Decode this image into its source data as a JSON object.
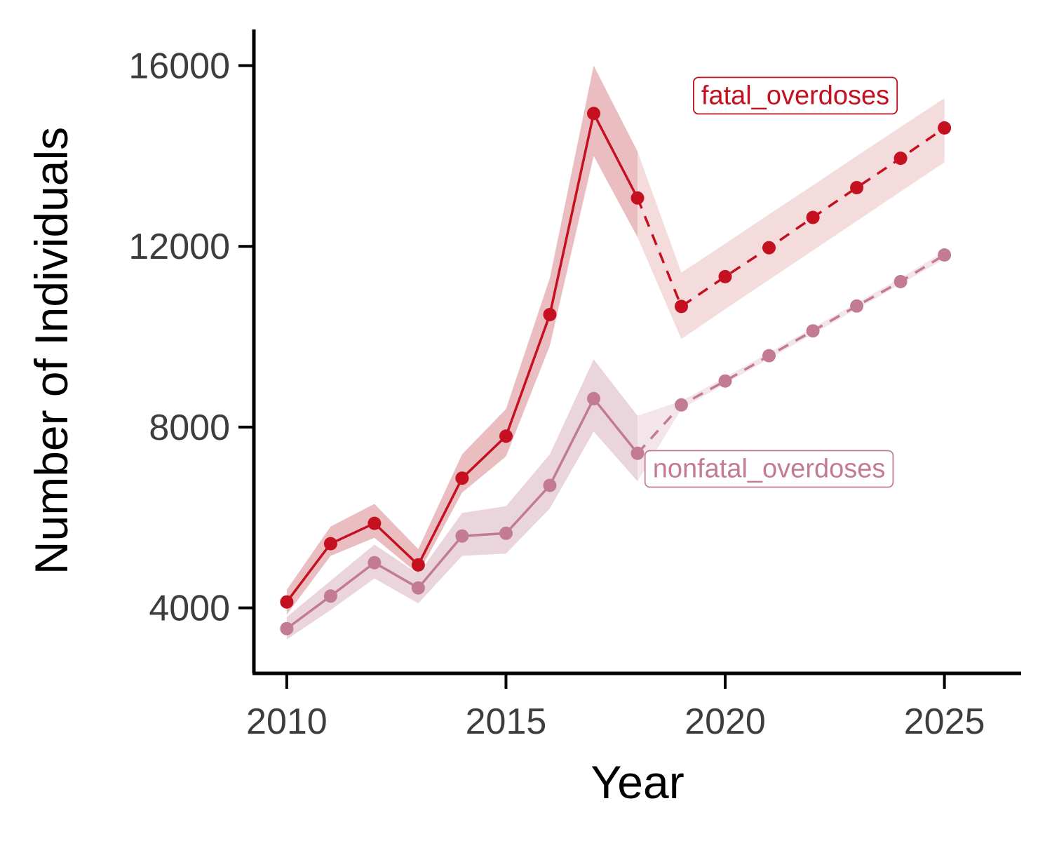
{
  "chart_data": {
    "type": "line",
    "xlabel": "Year",
    "ylabel": "Number of Individuals",
    "xlim": [
      2009.25,
      2026.75
    ],
    "ylim": [
      2550,
      16800
    ],
    "x_ticks": [
      2010,
      2015,
      2020,
      2025
    ],
    "y_ticks": [
      4000,
      8000,
      12000,
      16000
    ],
    "grid": false,
    "legend": "direct labels on series",
    "series": [
      {
        "name": "fatal_overdoses",
        "color": "#C4101F",
        "band_color": "#E8B7BA",
        "forecast_band_color": "#F3D9DA",
        "observed": {
          "x": [
            2010,
            2011,
            2012,
            2013,
            2014,
            2015,
            2016,
            2017,
            2018
          ],
          "y": [
            4130,
            5420,
            5870,
            4950,
            6870,
            7800,
            10490,
            14940,
            13070
          ],
          "lower": [
            3850,
            5150,
            5550,
            4750,
            6550,
            7350,
            9800,
            14000,
            12200
          ],
          "upper": [
            4400,
            5800,
            6300,
            5300,
            7400,
            8400,
            11300,
            16000,
            14100
          ]
        },
        "forecast": {
          "x": [
            2018,
            2019,
            2020,
            2021,
            2022,
            2023,
            2024,
            2025
          ],
          "y": [
            13070,
            10670,
            11330,
            11970,
            12640,
            13300,
            13950,
            14620
          ],
          "lower": [
            12200,
            9950,
            10610,
            11260,
            11910,
            12560,
            13210,
            13860
          ],
          "upper": [
            14100,
            11420,
            12060,
            12710,
            13350,
            14000,
            14640,
            15280
          ]
        }
      },
      {
        "name": "nonfatal_overdoses",
        "color": "#C27B93",
        "band_color": "#E9D0D8",
        "forecast_band_color": "#F2E4E9",
        "observed": {
          "x": [
            2010,
            2011,
            2012,
            2013,
            2014,
            2015,
            2016,
            2017,
            2018
          ],
          "y": [
            3540,
            4260,
            5000,
            4440,
            5590,
            5650,
            6710,
            8630,
            7420
          ],
          "lower": [
            3300,
            3950,
            4650,
            4100,
            5150,
            5200,
            6200,
            7900,
            6800
          ],
          "upper": [
            3800,
            4600,
            5400,
            4750,
            6100,
            6250,
            7400,
            9500,
            8250
          ]
        },
        "forecast": {
          "x": [
            2018,
            2019,
            2020,
            2021,
            2022,
            2023,
            2024,
            2025
          ],
          "y": [
            7420,
            8490,
            9020,
            9580,
            10130,
            10680,
            11220,
            11810
          ],
          "lower": [
            6800,
            8400,
            8960,
            9510,
            10060,
            10610,
            11160,
            11720
          ],
          "upper": [
            8250,
            8580,
            9100,
            9650,
            10200,
            10750,
            11300,
            11890
          ]
        }
      }
    ],
    "labels": [
      {
        "text": "fatal_overdoses",
        "x": 2021.6,
        "y": 15350,
        "series": 0
      },
      {
        "text": "nonfatal_overdoses",
        "x": 2021.0,
        "y": 7090,
        "series": 1
      }
    ]
  }
}
